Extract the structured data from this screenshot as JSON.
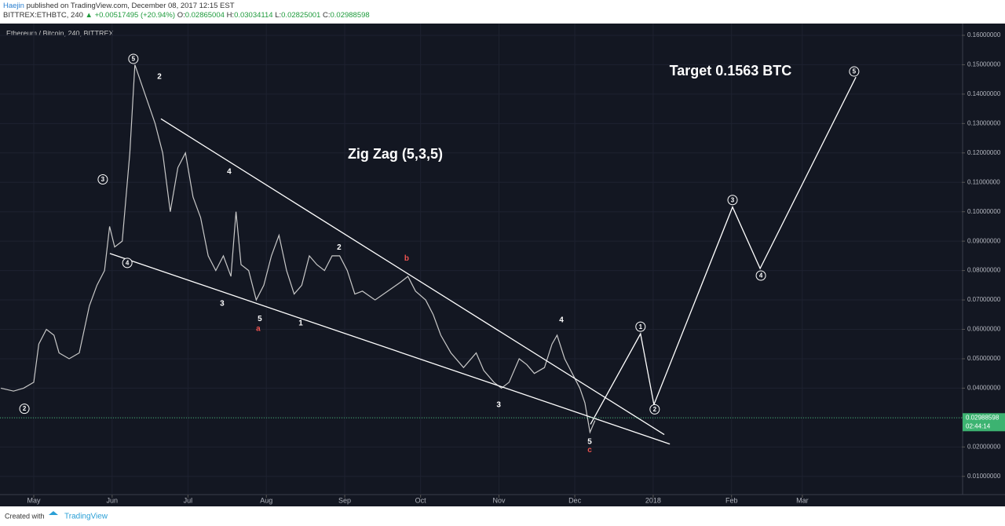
{
  "header": {
    "author": "Haejin",
    "published": "published on TradingView.com, December 08, 2017 12:15 EST",
    "symbol": "BITTREX:ETHBTC, 240",
    "change": "▲ +0.00517495 (+20.94%)",
    "ohlc": [
      {
        "label": "O:",
        "value": "0.02865004"
      },
      {
        "label": "H:",
        "value": "0.03034114"
      },
      {
        "label": "L:",
        "value": "0.02825001"
      },
      {
        "label": "C:",
        "value": "0.02988598"
      }
    ]
  },
  "chart_data": {
    "type": "line",
    "title": "Ethereum / Bitcoin, 240, BITTREX",
    "color": "#c8c8c8",
    "grid": true,
    "x": [
      -13,
      -8,
      -4,
      0,
      2,
      5,
      8,
      10,
      14,
      18,
      22,
      25,
      28,
      30,
      32,
      35,
      38,
      40,
      42,
      44,
      46,
      48,
      51,
      54,
      57,
      60,
      63,
      66,
      69,
      72,
      75,
      78,
      80,
      82,
      85,
      88,
      91,
      94,
      97,
      100,
      103,
      106,
      109,
      112,
      115,
      118,
      121,
      124,
      127,
      130,
      135,
      140,
      145,
      148,
      151,
      155,
      158,
      161,
      165,
      170,
      175,
      178,
      182,
      185,
      188,
      192,
      195,
      198,
      202,
      205,
      207,
      210,
      213,
      216,
      218,
      220,
      222
    ],
    "values": [
      0.04,
      0.039,
      0.04,
      0.042,
      0.055,
      0.06,
      0.058,
      0.052,
      0.05,
      0.052,
      0.068,
      0.075,
      0.08,
      0.095,
      0.088,
      0.09,
      0.12,
      0.15,
      0.145,
      0.14,
      0.135,
      0.13,
      0.12,
      0.1,
      0.115,
      0.12,
      0.105,
      0.098,
      0.085,
      0.08,
      0.085,
      0.078,
      0.1,
      0.082,
      0.08,
      0.07,
      0.075,
      0.085,
      0.092,
      0.08,
      0.072,
      0.075,
      0.085,
      0.082,
      0.08,
      0.085,
      0.085,
      0.08,
      0.072,
      0.073,
      0.07,
      0.073,
      0.076,
      0.078,
      0.073,
      0.07,
      0.065,
      0.058,
      0.052,
      0.047,
      0.052,
      0.046,
      0.042,
      0.04,
      0.042,
      0.05,
      0.048,
      0.045,
      0.047,
      0.055,
      0.058,
      0.05,
      0.045,
      0.04,
      0.035,
      0.025,
      0.029
    ],
    "xlim": [
      -13.35,
      367.08
    ],
    "xticks": [
      {
        "value": 0,
        "label": "May"
      },
      {
        "value": 31,
        "label": "Jun"
      },
      {
        "value": 61,
        "label": "Jul"
      },
      {
        "value": 92,
        "label": "Aug"
      },
      {
        "value": 123,
        "label": "Sep"
      },
      {
        "value": 153,
        "label": "Oct"
      },
      {
        "value": 184,
        "label": "Nov"
      },
      {
        "value": 214,
        "label": "Dec"
      },
      {
        "value": 245,
        "label": "2018"
      },
      {
        "value": 276,
        "label": "Feb"
      },
      {
        "value": 304,
        "label": "Mar"
      }
    ],
    "ylim": [
      0.0038,
      0.164
    ],
    "yticks": [
      {
        "value": 0.01,
        "label": "0.01000000"
      },
      {
        "value": 0.02,
        "label": "0.02000000"
      },
      {
        "value": 0.03,
        "label": "0.03000000"
      },
      {
        "value": 0.04,
        "label": "0.04000000"
      },
      {
        "value": 0.05,
        "label": "0.05000000"
      },
      {
        "value": 0.06,
        "label": "0.06000000"
      },
      {
        "value": 0.07,
        "label": "0.07000000"
      },
      {
        "value": 0.08,
        "label": "0.08000000"
      },
      {
        "value": 0.09,
        "label": "0.09000000"
      },
      {
        "value": 0.1,
        "label": "0.10000000"
      },
      {
        "value": 0.11,
        "label": "0.11000000"
      },
      {
        "value": 0.12,
        "label": "0.12000000"
      },
      {
        "value": 0.13,
        "label": "0.13000000"
      },
      {
        "value": 0.14,
        "label": "0.14000000"
      },
      {
        "value": 0.15,
        "label": "0.15000000"
      },
      {
        "value": 0.16,
        "label": "0.16000000"
      }
    ],
    "last_price": 0.02988598,
    "countdown": "02:44:14",
    "lines": [
      {
        "x": [
          50.3,
          249.4
        ],
        "y": [
          0.1316,
          0.0242
        ],
        "color": "#ffffff"
      },
      {
        "x": [
          30.1,
          251.6
        ],
        "y": [
          0.0858,
          0.021
        ],
        "color": "#ffffff"
      },
      {
        "x": [
          220.2,
          240,
          245.3,
          276.4,
          287.3,
          325.2
        ],
        "y": [
          0.0277,
          0.0585,
          0.0344,
          0.1016,
          0.0807,
          0.1458
        ],
        "color": "#ffffff"
      }
    ],
    "annotations": [
      {
        "text": "5",
        "x": 39.4,
        "y": 0.152,
        "circled": true,
        "color": "#ffffff"
      },
      {
        "text": "2",
        "x": 49.7,
        "y": 0.146,
        "circled": false,
        "color": "#ffffff"
      },
      {
        "text": "3",
        "x": 27.3,
        "y": 0.111,
        "circled": true,
        "color": "#ffffff"
      },
      {
        "text": "4",
        "x": 37,
        "y": 0.0826,
        "circled": true,
        "color": "#ffffff"
      },
      {
        "text": "2",
        "x": -3.7,
        "y": 0.033,
        "circled": true,
        "color": "#ffffff"
      },
      {
        "text": "4",
        "x": 77.3,
        "y": 0.1137,
        "circled": false,
        "color": "#ffffff"
      },
      {
        "text": "3",
        "x": 74.5,
        "y": 0.0689,
        "circled": false,
        "color": "#ffffff"
      },
      {
        "text": "5",
        "x": 89.4,
        "y": 0.0636,
        "circled": false,
        "color": "#ffffff"
      },
      {
        "text": "a",
        "x": 88.8,
        "y": 0.0603,
        "circled": false,
        "color": "#ef5350"
      },
      {
        "text": "1",
        "x": 105.6,
        "y": 0.0622,
        "circled": false,
        "color": "#ffffff"
      },
      {
        "text": "2",
        "x": 120.8,
        "y": 0.088,
        "circled": false,
        "color": "#ffffff"
      },
      {
        "text": "b",
        "x": 147.5,
        "y": 0.0842,
        "circled": false,
        "color": "#ef5350"
      },
      {
        "text": "3",
        "x": 183.9,
        "y": 0.0344,
        "circled": false,
        "color": "#ffffff"
      },
      {
        "text": "4",
        "x": 208.7,
        "y": 0.0633,
        "circled": false,
        "color": "#ffffff"
      },
      {
        "text": "5",
        "x": 219.9,
        "y": 0.0218,
        "circled": false,
        "color": "#ffffff"
      },
      {
        "text": "c",
        "x": 219.9,
        "y": 0.0191,
        "circled": false,
        "color": "#ef5350"
      },
      {
        "text": "1",
        "x": 240,
        "y": 0.0609,
        "circled": true,
        "color": "#ffffff"
      },
      {
        "text": "2",
        "x": 245.6,
        "y": 0.0328,
        "circled": true,
        "color": "#ffffff"
      },
      {
        "text": "3",
        "x": 276.4,
        "y": 0.104,
        "circled": true,
        "color": "#ffffff"
      },
      {
        "text": "4",
        "x": 287.6,
        "y": 0.0783,
        "circled": true,
        "color": "#ffffff"
      },
      {
        "text": "5",
        "x": 324.5,
        "y": 0.1477,
        "circled": true,
        "color": "#ffffff"
      }
    ],
    "notes": [
      {
        "text": "Zig Zag (5,3,5)",
        "x": 143,
        "y": 0.1193
      },
      {
        "text": "Target 0.1563 BTC",
        "x": 275.6,
        "y": 0.1477
      }
    ]
  },
  "footer": {
    "created": "Created with",
    "brand": "TradingView"
  }
}
